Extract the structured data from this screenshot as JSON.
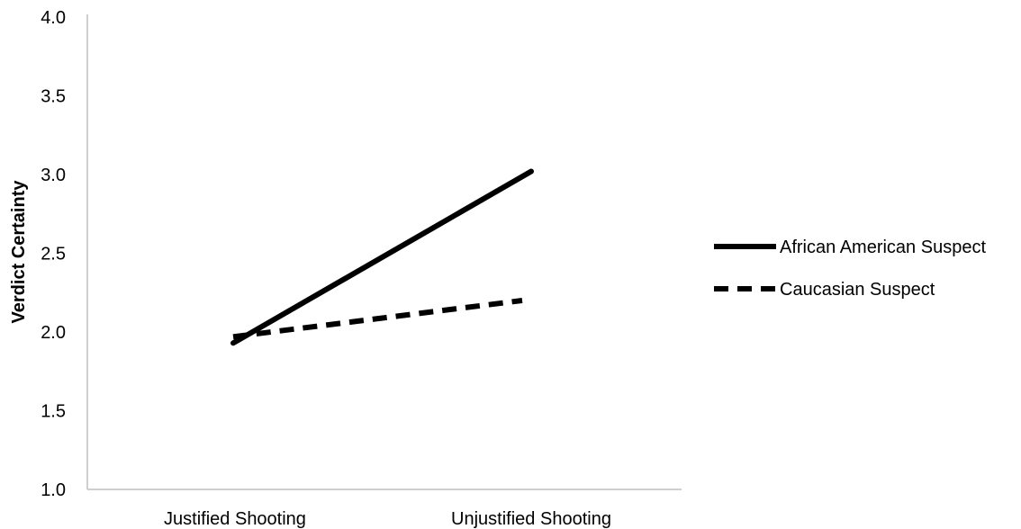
{
  "chart_data": {
    "type": "line",
    "title": "",
    "xlabel": "",
    "ylabel": "Verdict Certainty",
    "categories": [
      "Justified Shooting",
      "Unjustified Shooting"
    ],
    "ylim": [
      1.0,
      4.0
    ],
    "yticks": [
      "1.0",
      "1.5",
      "2.0",
      "2.5",
      "3.0",
      "3.5",
      "4.0"
    ],
    "grid": false,
    "legend_position": "right",
    "series": [
      {
        "name": "African American Suspect",
        "values": [
          1.93,
          3.02
        ],
        "line_style": "solid",
        "color": "#000000"
      },
      {
        "name": "Caucasian Suspect",
        "values": [
          1.97,
          2.2
        ],
        "line_style": "dashed",
        "color": "#000000"
      }
    ]
  }
}
